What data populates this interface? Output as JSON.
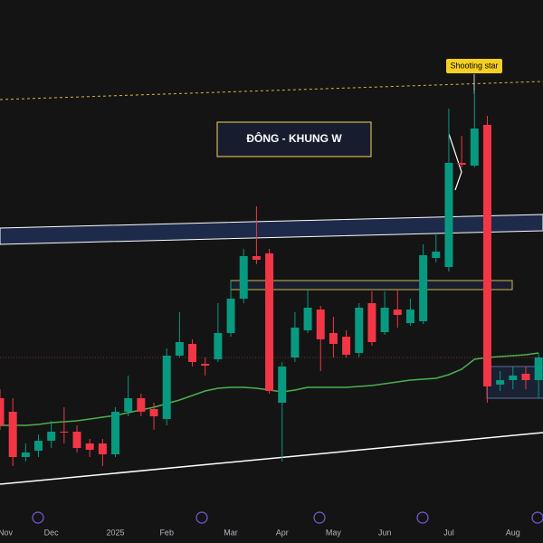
{
  "chart_data": {
    "type": "candlestick",
    "annotations": [
      "ĐÔNG - KHUNG W",
      "Shooting star"
    ],
    "categories": [
      "Nov",
      null,
      null,
      null,
      "Dec",
      null,
      null,
      null,
      null,
      "2025",
      null,
      null,
      null,
      "Feb",
      null,
      null,
      null,
      null,
      "Mar",
      null,
      null,
      null,
      "Apr",
      null,
      null,
      null,
      "May",
      null,
      null,
      null,
      "Jun",
      null,
      null,
      null,
      null,
      "Jul",
      null,
      null,
      null,
      null,
      "Aug",
      null,
      null
    ],
    "open": [
      160,
      145,
      95,
      102,
      113,
      123,
      123,
      110,
      110,
      98,
      145,
      160,
      148,
      137,
      207,
      220,
      198,
      203,
      232,
      270,
      317,
      320,
      155,
      205,
      235,
      258,
      232,
      228,
      210,
      265,
      233,
      258,
      243,
      245,
      315,
      305,
      420,
      417,
      462,
      175,
      180,
      187,
      180
    ],
    "high": [
      170,
      160,
      110,
      120,
      135,
      150,
      130,
      115,
      115,
      150,
      185,
      165,
      155,
      215,
      255,
      225,
      205,
      265,
      290,
      325,
      372,
      325,
      200,
      255,
      280,
      262,
      250,
      235,
      265,
      278,
      278,
      280,
      270,
      330,
      342,
      480,
      450,
      500,
      472,
      190,
      195,
      195,
      210
    ],
    "low": [
      125,
      85,
      90,
      95,
      105,
      110,
      100,
      95,
      85,
      95,
      140,
      140,
      125,
      130,
      205,
      195,
      185,
      200,
      228,
      265,
      308,
      165,
      90,
      200,
      232,
      190,
      205,
      205,
      205,
      218,
      230,
      238,
      240,
      242,
      310,
      300,
      415,
      415,
      155,
      168,
      170,
      170,
      160
    ],
    "close": [
      130,
      95,
      100,
      113,
      123,
      122,
      105,
      103,
      98,
      145,
      160,
      145,
      140,
      207,
      222,
      200,
      196,
      232,
      270,
      317,
      313,
      168,
      195,
      238,
      260,
      225,
      220,
      208,
      260,
      222,
      260,
      252,
      258,
      318,
      322,
      420,
      418,
      458,
      173,
      180,
      185,
      180,
      205
    ],
    "ma": {
      "color": "#4caf50",
      "values": [
        130,
        130,
        130,
        131,
        133,
        134,
        135,
        137,
        139,
        141,
        144,
        147,
        150,
        154,
        158,
        163,
        168,
        171,
        172,
        172,
        171,
        169,
        167,
        169,
        172,
        172,
        172,
        172,
        173,
        174,
        176,
        178,
        180,
        181,
        182,
        186,
        192,
        203,
        205,
        206,
        207,
        208,
        210
      ]
    },
    "up_color": "#089981",
    "down_color": "#f23645",
    "ylim": [
      0,
      600
    ]
  }
}
